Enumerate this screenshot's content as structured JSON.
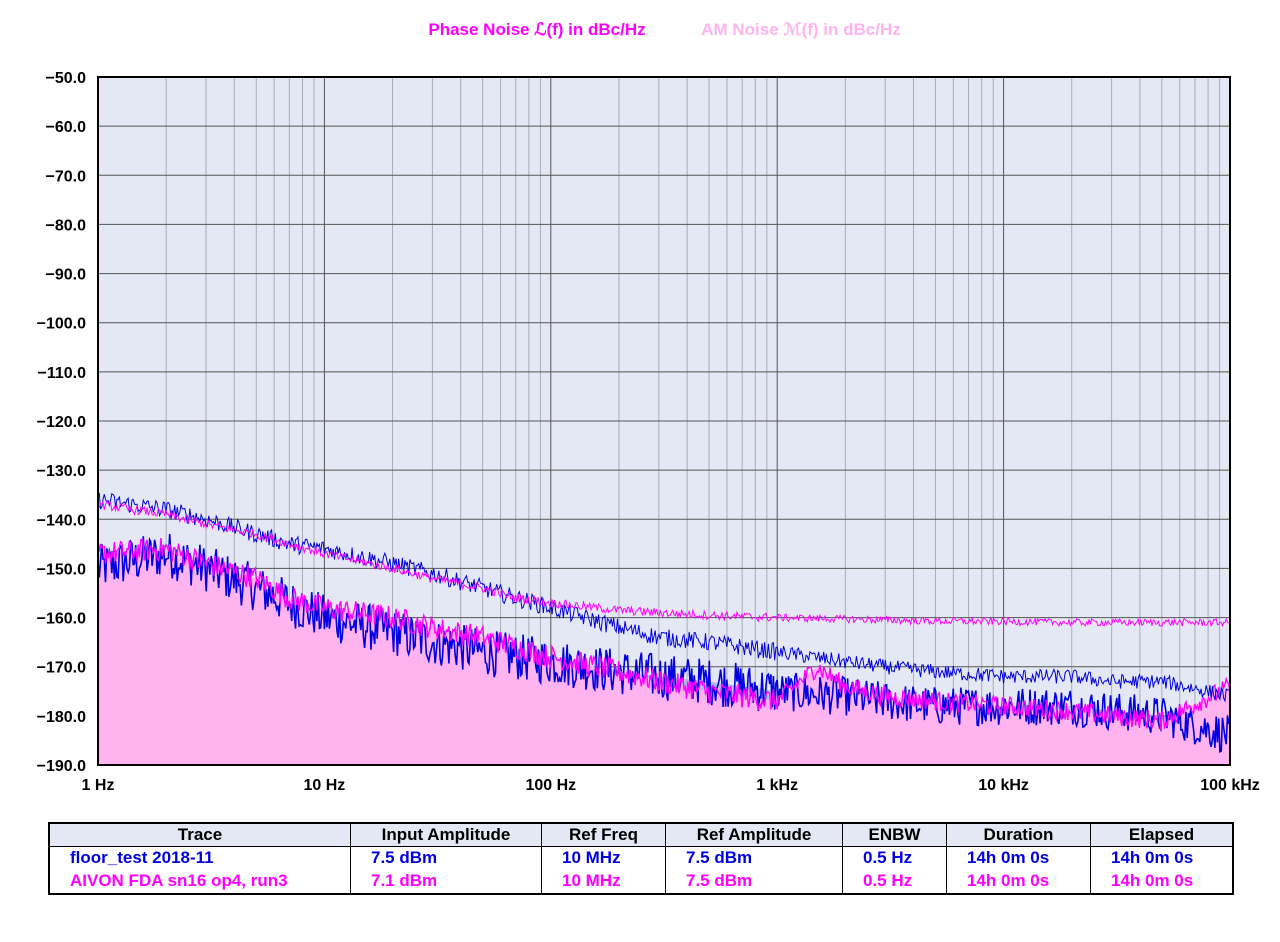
{
  "chart_data": {
    "type": "line",
    "title": "",
    "legend": [
      {
        "label": "Phase Noise ℒ(f) in dBc/Hz",
        "color": "#ff00ff"
      },
      {
        "label": "AM Noise ℳ(f) in dBc/Hz",
        "color": "#ffb4f0"
      }
    ],
    "x_scale": "log",
    "xlim": [
      1,
      100000
    ],
    "ylim": [
      -190,
      -50
    ],
    "grid": true,
    "legend_placement": "top-center",
    "xticks": [
      {
        "value": 1,
        "label": "1 Hz"
      },
      {
        "value": 10,
        "label": "10 Hz"
      },
      {
        "value": 100,
        "label": "100 Hz"
      },
      {
        "value": 1000,
        "label": "1 kHz"
      },
      {
        "value": 10000,
        "label": "10 kHz"
      },
      {
        "value": 100000,
        "label": "100 kHz"
      }
    ],
    "yticks": [
      {
        "value": -50,
        "label": "−50.0"
      },
      {
        "value": -60,
        "label": "−60.0"
      },
      {
        "value": -70,
        "label": "−70.0"
      },
      {
        "value": -80,
        "label": "−80.0"
      },
      {
        "value": -90,
        "label": "−90.0"
      },
      {
        "value": -100,
        "label": "−100.0"
      },
      {
        "value": -110,
        "label": "−110.0"
      },
      {
        "value": -120,
        "label": "−120.0"
      },
      {
        "value": -130,
        "label": "−130.0"
      },
      {
        "value": -140,
        "label": "−140.0"
      },
      {
        "value": -150,
        "label": "−150.0"
      },
      {
        "value": -160,
        "label": "−160.0"
      },
      {
        "value": -170,
        "label": "−170.0"
      },
      {
        "value": -180,
        "label": "−180.0"
      },
      {
        "value": -190,
        "label": "−190.0"
      }
    ],
    "colors": {
      "plot_bg": "#e4e8f4",
      "am_fill": "#ffb4f0",
      "blue_fill": "#8c96f0",
      "blue": "#0000e0",
      "magenta": "#ff00ff"
    },
    "series": [
      {
        "name": "floor_test 2018-11",
        "kind": "phase_noise",
        "color": "#0000e0",
        "points": [
          [
            1,
            -136
          ],
          [
            2,
            -138
          ],
          [
            3,
            -140
          ],
          [
            5,
            -143
          ],
          [
            7,
            -145
          ],
          [
            10,
            -146
          ],
          [
            20,
            -149
          ],
          [
            30,
            -151
          ],
          [
            50,
            -154
          ],
          [
            70,
            -156
          ],
          [
            100,
            -158
          ],
          [
            200,
            -162
          ],
          [
            300,
            -164
          ],
          [
            500,
            -165
          ],
          [
            700,
            -166
          ],
          [
            1000,
            -167
          ],
          [
            2000,
            -169
          ],
          [
            3000,
            -170
          ],
          [
            5000,
            -171
          ],
          [
            10000,
            -172
          ],
          [
            20000,
            -172
          ],
          [
            30000,
            -173
          ],
          [
            50000,
            -173
          ],
          [
            100000,
            -176
          ]
        ]
      },
      {
        "name": "AIVON FDA sn16 op4, run3",
        "kind": "phase_noise",
        "color": "#ff00ff",
        "points": [
          [
            1,
            -137
          ],
          [
            2,
            -139
          ],
          [
            3,
            -141
          ],
          [
            5,
            -143
          ],
          [
            7,
            -145
          ],
          [
            10,
            -147
          ],
          [
            20,
            -150
          ],
          [
            30,
            -152
          ],
          [
            50,
            -154
          ],
          [
            70,
            -156
          ],
          [
            100,
            -157
          ],
          [
            200,
            -158.5
          ],
          [
            300,
            -159
          ],
          [
            500,
            -159.5
          ],
          [
            700,
            -159.8
          ],
          [
            1000,
            -160
          ],
          [
            2000,
            -160.3
          ],
          [
            3000,
            -160.5
          ],
          [
            5000,
            -160.7
          ],
          [
            10000,
            -160.8
          ],
          [
            20000,
            -161
          ],
          [
            30000,
            -161
          ],
          [
            50000,
            -161
          ],
          [
            100000,
            -161
          ]
        ]
      },
      {
        "name": "floor_test 2018-11",
        "kind": "am_noise",
        "color": "#0000e0",
        "points": [
          [
            1,
            -150
          ],
          [
            2,
            -147
          ],
          [
            3,
            -150
          ],
          [
            5,
            -154
          ],
          [
            7,
            -157
          ],
          [
            10,
            -160
          ],
          [
            20,
            -163
          ],
          [
            30,
            -165
          ],
          [
            50,
            -167
          ],
          [
            70,
            -168
          ],
          [
            100,
            -169
          ],
          [
            200,
            -171
          ],
          [
            300,
            -172
          ],
          [
            500,
            -173
          ],
          [
            700,
            -174
          ],
          [
            1000,
            -175
          ],
          [
            2000,
            -176
          ],
          [
            3000,
            -177
          ],
          [
            5000,
            -178
          ],
          [
            10000,
            -178
          ],
          [
            20000,
            -178
          ],
          [
            30000,
            -179
          ],
          [
            50000,
            -180
          ],
          [
            100000,
            -184
          ]
        ]
      },
      {
        "name": "AIVON FDA sn16 op4, run3",
        "kind": "am_noise",
        "color": "#ff00ff",
        "points": [
          [
            1,
            -147
          ],
          [
            2,
            -146
          ],
          [
            3,
            -149
          ],
          [
            5,
            -152
          ],
          [
            7,
            -156
          ],
          [
            10,
            -158
          ],
          [
            20,
            -160
          ],
          [
            30,
            -162
          ],
          [
            50,
            -164
          ],
          [
            70,
            -166
          ],
          [
            100,
            -168
          ],
          [
            200,
            -171
          ],
          [
            300,
            -173
          ],
          [
            500,
            -175
          ],
          [
            700,
            -176
          ],
          [
            1000,
            -177
          ],
          [
            1500,
            -170
          ],
          [
            2000,
            -174
          ],
          [
            3000,
            -176
          ],
          [
            5000,
            -177
          ],
          [
            10000,
            -178
          ],
          [
            20000,
            -179
          ],
          [
            30000,
            -180
          ],
          [
            50000,
            -181
          ],
          [
            100000,
            -174
          ]
        ]
      }
    ]
  },
  "table": {
    "headers": [
      "Trace",
      "Input Amplitude",
      "Ref Freq",
      "Ref Amplitude",
      "ENBW",
      "Duration",
      "Elapsed"
    ],
    "rows": [
      [
        "floor_test 2018-11",
        "7.5 dBm",
        "10 MHz",
        "7.5 dBm",
        "0.5 Hz",
        "14h 0m 0s",
        "14h 0m 0s"
      ],
      [
        "AIVON FDA sn16 op4, run3",
        "7.1 dBm",
        "10 MHz",
        "7.5 dBm",
        "0.5 Hz",
        "14h 0m 0s",
        "14h 0m 0s"
      ]
    ]
  }
}
